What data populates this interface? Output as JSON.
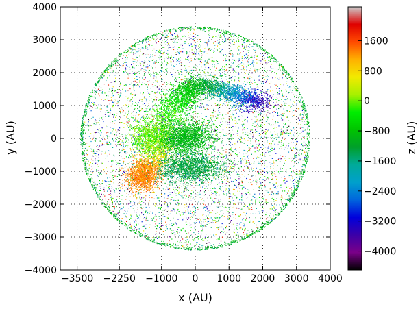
{
  "chart_data": {
    "type": "scatter",
    "xlabel": "x (AU)",
    "ylabel": "y (AU)",
    "xlim": [
      -4000,
      4000
    ],
    "ylim": [
      -4000,
      4000
    ],
    "x_ticks": [
      -3500,
      -2250,
      -1000,
      0,
      1000,
      2000,
      3000,
      4000
    ],
    "x_tick_labels": [
      "−3500",
      "−2250",
      "−1000",
      "0",
      "1000",
      "2000",
      "3000",
      "4000"
    ],
    "y_ticks": [
      4000,
      3000,
      2000,
      1000,
      0,
      -1000,
      -2000,
      -3000,
      -4000
    ],
    "y_tick_labels": [
      "4000",
      "3000",
      "2000",
      "1000",
      "0",
      "−1000",
      "−2000",
      "−3000",
      "−4000"
    ],
    "grid": true,
    "grid_style": "dotted",
    "marker": "point",
    "colormap": "nipy_spectral",
    "colorbar": {
      "label": "z (AU)",
      "range": [
        -4500,
        2500
      ],
      "ticks": [
        1600,
        800,
        0,
        -800,
        -1600,
        -2400,
        -3200,
        -4000
      ],
      "tick_labels": [
        "1600",
        "800",
        "0",
        "−800",
        "−1600",
        "−2400",
        "−3200",
        "−4000"
      ],
      "colors": [
        "#000000",
        "#7a0089",
        "#3b00a8",
        "#0000dc",
        "#0066dd",
        "#00a0cc",
        "#00aa99",
        "#009f2a",
        "#00c400",
        "#00ee00",
        "#a8f000",
        "#f2ea00",
        "#ffb000",
        "#ff4a00",
        "#df0000",
        "#cccccc"
      ]
    },
    "series": [
      {
        "shape": "filled_disk",
        "center": [
          0,
          0
        ],
        "radius": 3400,
        "z_range": [
          -4500,
          2500
        ],
        "points": 5200
      },
      {
        "shape": "shell_ring",
        "center": [
          0,
          0
        ],
        "radius": 3400,
        "z": -1100,
        "points": 1500
      },
      {
        "shape": "arc_stream",
        "path": [
          [
            -350,
            1000
          ],
          [
            0,
            1650
          ],
          [
            500,
            1550
          ],
          [
            1000,
            1400
          ],
          [
            1500,
            1200
          ],
          [
            1950,
            1100
          ]
        ],
        "z_path": [
          -300,
          -1000,
          -1400,
          -2000,
          -2800,
          -3700
        ],
        "spread": 200,
        "points": 2400
      },
      {
        "shape": "arc_stream",
        "path": [
          [
            -1450,
            -1000
          ],
          [
            -1150,
            -550
          ],
          [
            -1000,
            50
          ],
          [
            -850,
            750
          ],
          [
            -500,
            1250
          ],
          [
            -100,
            1600
          ]
        ],
        "z_path": [
          1300,
          600,
          100,
          -200,
          -500,
          -900
        ],
        "spread": 240,
        "points": 2200
      },
      {
        "shape": "clump",
        "center": [
          -1550,
          -1150
        ],
        "sigma": [
          230,
          230
        ],
        "z": 1300,
        "points": 1300
      },
      {
        "shape": "clump",
        "center": [
          -300,
          0
        ],
        "sigma": [
          420,
          260
        ],
        "z": -900,
        "points": 2000
      },
      {
        "shape": "clump",
        "center": [
          -150,
          -900
        ],
        "sigma": [
          480,
          210
        ],
        "z": -1300,
        "points": 1600
      },
      {
        "shape": "clump",
        "center": [
          -1400,
          0
        ],
        "sigma": [
          260,
          270
        ],
        "z": -50,
        "points": 900
      }
    ]
  }
}
